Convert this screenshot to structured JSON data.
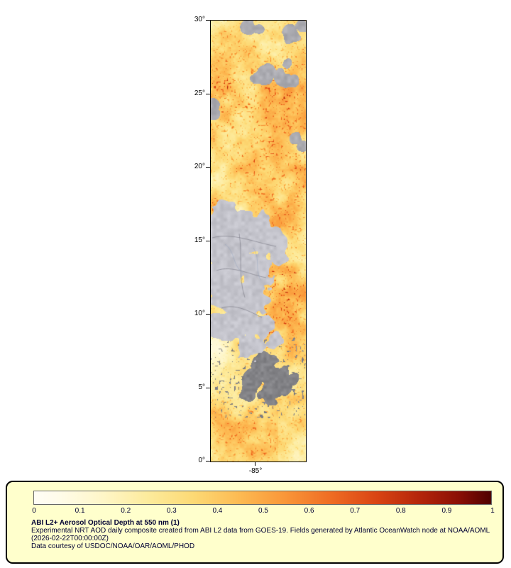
{
  "map": {
    "y_axis_labels": [
      "30°",
      "25°",
      "20°",
      "15°",
      "10°",
      "5°",
      "0°"
    ],
    "x_axis_label": "-85°"
  },
  "legend": {
    "background": "#ffffcc",
    "border_color": "#000000",
    "text_color": "#000033",
    "colorbar_ticks": [
      "0",
      "0.1",
      "0.2",
      "0.3",
      "0.4",
      "0.5",
      "0.6",
      "0.7",
      "0.8",
      "0.9",
      "1"
    ],
    "colorbar_stops": [
      {
        "t": 0.0,
        "color": "#fffdf5"
      },
      {
        "t": 0.05,
        "color": "#fffceb"
      },
      {
        "t": 0.15,
        "color": "#fef6c8"
      },
      {
        "t": 0.25,
        "color": "#fdeb9c"
      },
      {
        "t": 0.35,
        "color": "#fdd974"
      },
      {
        "t": 0.45,
        "color": "#fdba52"
      },
      {
        "t": 0.55,
        "color": "#f99638"
      },
      {
        "t": 0.65,
        "color": "#ef6c23"
      },
      {
        "t": 0.75,
        "color": "#d94413"
      },
      {
        "t": 0.85,
        "color": "#b1230a"
      },
      {
        "t": 0.93,
        "color": "#8a0f05"
      },
      {
        "t": 1.0,
        "color": "#4f0000"
      }
    ],
    "title": "ABI L2+ Aerosol Optical Depth at 550 nm (1)",
    "description": "Experimental NRT AOD daily composite created from ABI L2 data from GOES-19. Fields generated by Atlantic OceanWatch node at NOAA/AOML",
    "timestamp": "(2026-02-22T00:00:00Z)",
    "courtesy": "Data courtesy of USDOC/NOAA/OAR/AOML/PHOD"
  },
  "chart_data": {
    "type": "heatmap",
    "title": "ABI L2+ Aerosol Optical Depth at 550 nm (1)",
    "colorbar_range": [
      0,
      1
    ],
    "colorbar_tick_values": [
      0,
      0.1,
      0.2,
      0.3,
      0.4,
      0.5,
      0.6,
      0.7,
      0.8,
      0.9,
      1
    ],
    "x_axis": {
      "tick_labels": [
        "-85°"
      ]
    },
    "y_axis": {
      "tick_labels": [
        "0°",
        "5°",
        "10°",
        "15°",
        "20°",
        "25°",
        "30°"
      ],
      "range_degrees_lat": [
        0,
        30
      ]
    },
    "legend_position": "bottom"
  }
}
